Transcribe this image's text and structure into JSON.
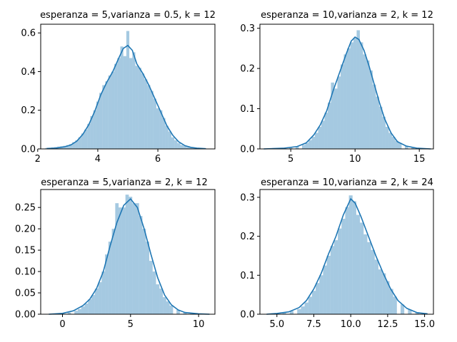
{
  "chart_data": [
    {
      "type": "histogram+kde",
      "title": "esperanza = 5,varianza = 0.5, k = 12",
      "xlim": [
        2.1,
        7.9
      ],
      "ylim": [
        0,
        0.645
      ],
      "xticks": [
        2,
        4,
        6
      ],
      "xtick_labels": [
        "2",
        "4",
        "6"
      ],
      "yticks": [
        0.0,
        0.2,
        0.4,
        0.6
      ],
      "ytick_labels": [
        "0.0",
        "0.2",
        "0.4",
        "0.6"
      ],
      "bin_width": 0.1,
      "bins": [
        [
          2.3,
          0.005
        ],
        [
          2.4,
          0.006
        ],
        [
          2.5,
          0.008
        ],
        [
          2.6,
          0.01
        ],
        [
          2.7,
          0.012
        ],
        [
          2.8,
          0.014
        ],
        [
          2.9,
          0.016
        ],
        [
          3.0,
          0.02
        ],
        [
          3.1,
          0.025
        ],
        [
          3.2,
          0.035
        ],
        [
          3.3,
          0.045
        ],
        [
          3.4,
          0.06
        ],
        [
          3.5,
          0.08
        ],
        [
          3.6,
          0.1
        ],
        [
          3.7,
          0.13
        ],
        [
          3.8,
          0.17
        ],
        [
          3.9,
          0.2
        ],
        [
          4.0,
          0.245
        ],
        [
          4.1,
          0.29
        ],
        [
          4.2,
          0.33
        ],
        [
          4.3,
          0.35
        ],
        [
          4.4,
          0.38
        ],
        [
          4.5,
          0.4
        ],
        [
          4.6,
          0.44
        ],
        [
          4.7,
          0.47
        ],
        [
          4.8,
          0.53
        ],
        [
          4.9,
          0.48
        ],
        [
          5.0,
          0.61
        ],
        [
          5.1,
          0.47
        ],
        [
          5.2,
          0.5
        ],
        [
          5.3,
          0.43
        ],
        [
          5.4,
          0.42
        ],
        [
          5.5,
          0.39
        ],
        [
          5.6,
          0.36
        ],
        [
          5.7,
          0.33
        ],
        [
          5.8,
          0.3
        ],
        [
          5.9,
          0.26
        ],
        [
          6.0,
          0.21
        ],
        [
          6.1,
          0.2
        ],
        [
          6.2,
          0.16
        ],
        [
          6.3,
          0.12
        ],
        [
          6.4,
          0.09
        ],
        [
          6.5,
          0.06
        ],
        [
          6.6,
          0.045
        ],
        [
          6.7,
          0.03
        ],
        [
          6.8,
          0.02
        ],
        [
          6.9,
          0.015
        ],
        [
          7.0,
          0.01
        ],
        [
          7.1,
          0.008
        ],
        [
          7.2,
          0.006
        ],
        [
          7.3,
          0.005
        ],
        [
          7.4,
          0.004
        ],
        [
          7.5,
          0.003
        ]
      ],
      "kde": [
        [
          2.3,
          0.002
        ],
        [
          2.6,
          0.004
        ],
        [
          2.9,
          0.011
        ],
        [
          3.1,
          0.02
        ],
        [
          3.3,
          0.04
        ],
        [
          3.5,
          0.075
        ],
        [
          3.7,
          0.125
        ],
        [
          3.9,
          0.195
        ],
        [
          4.1,
          0.28
        ],
        [
          4.3,
          0.345
        ],
        [
          4.5,
          0.4
        ],
        [
          4.7,
          0.47
        ],
        [
          4.85,
          0.52
        ],
        [
          5.0,
          0.535
        ],
        [
          5.15,
          0.51
        ],
        [
          5.3,
          0.44
        ],
        [
          5.5,
          0.39
        ],
        [
          5.7,
          0.33
        ],
        [
          5.9,
          0.26
        ],
        [
          6.1,
          0.19
        ],
        [
          6.3,
          0.12
        ],
        [
          6.5,
          0.07
        ],
        [
          6.7,
          0.036
        ],
        [
          6.9,
          0.017
        ],
        [
          7.1,
          0.008
        ],
        [
          7.3,
          0.004
        ],
        [
          7.6,
          0.001
        ]
      ]
    },
    {
      "type": "histogram+kde",
      "title": "esperanza = 10,varianza = 2, k = 12",
      "xlim": [
        2.6,
        16.1
      ],
      "ylim": [
        0,
        0.31
      ],
      "xticks": [
        5,
        10,
        15
      ],
      "xtick_labels": [
        "5",
        "10",
        "15"
      ],
      "yticks": [
        0.0,
        0.1,
        0.2,
        0.3
      ],
      "ytick_labels": [
        "0.0",
        "0.1",
        "0.2",
        "0.3"
      ],
      "bin_width": 0.25,
      "bins": [
        [
          3.5,
          0.001
        ],
        [
          4.0,
          0.002
        ],
        [
          4.5,
          0.003
        ],
        [
          5.0,
          0.004
        ],
        [
          5.5,
          0.006
        ],
        [
          6.0,
          0.01
        ],
        [
          6.25,
          0.015
        ],
        [
          6.5,
          0.022
        ],
        [
          6.75,
          0.03
        ],
        [
          7.0,
          0.04
        ],
        [
          7.25,
          0.055
        ],
        [
          7.5,
          0.07
        ],
        [
          7.75,
          0.09
        ],
        [
          8.0,
          0.115
        ],
        [
          8.25,
          0.165
        ],
        [
          8.5,
          0.15
        ],
        [
          8.75,
          0.18
        ],
        [
          9.0,
          0.21
        ],
        [
          9.25,
          0.235
        ],
        [
          9.5,
          0.25
        ],
        [
          9.75,
          0.265
        ],
        [
          10.0,
          0.275
        ],
        [
          10.25,
          0.295
        ],
        [
          10.5,
          0.265
        ],
        [
          10.75,
          0.235
        ],
        [
          11.0,
          0.22
        ],
        [
          11.25,
          0.195
        ],
        [
          11.5,
          0.16
        ],
        [
          11.75,
          0.13
        ],
        [
          12.0,
          0.105
        ],
        [
          12.25,
          0.08
        ],
        [
          12.5,
          0.055
        ],
        [
          12.75,
          0.04
        ],
        [
          13.0,
          0.03
        ],
        [
          13.25,
          0.02
        ],
        [
          13.5,
          0.015
        ],
        [
          14.0,
          0.008
        ],
        [
          14.5,
          0.004
        ],
        [
          15.0,
          0.002
        ],
        [
          15.5,
          0.001
        ]
      ],
      "kde": [
        [
          2.9,
          0.0
        ],
        [
          4.5,
          0.002
        ],
        [
          5.5,
          0.006
        ],
        [
          6.2,
          0.015
        ],
        [
          6.8,
          0.035
        ],
        [
          7.3,
          0.06
        ],
        [
          7.8,
          0.095
        ],
        [
          8.3,
          0.145
        ],
        [
          8.8,
          0.19
        ],
        [
          9.3,
          0.235
        ],
        [
          9.7,
          0.268
        ],
        [
          10.0,
          0.278
        ],
        [
          10.3,
          0.272
        ],
        [
          10.7,
          0.245
        ],
        [
          11.1,
          0.205
        ],
        [
          11.5,
          0.16
        ],
        [
          11.9,
          0.115
        ],
        [
          12.3,
          0.075
        ],
        [
          12.8,
          0.04
        ],
        [
          13.3,
          0.018
        ],
        [
          14.0,
          0.007
        ],
        [
          14.8,
          0.002
        ],
        [
          15.9,
          0.0
        ]
      ]
    },
    {
      "type": "histogram+kde",
      "title": "esperanza = 5,varianza = 2, k = 12",
      "xlim": [
        -1.6,
        11.2
      ],
      "ylim": [
        0,
        0.292
      ],
      "xticks": [
        0,
        5,
        10
      ],
      "xtick_labels": [
        "0",
        "5",
        "10"
      ],
      "yticks": [
        0.0,
        0.05,
        0.1,
        0.15,
        0.2,
        0.25
      ],
      "ytick_labels": [
        "0.00",
        "0.05",
        "0.10",
        "0.15",
        "0.20",
        "0.25"
      ],
      "bin_width": 0.25,
      "bins": [
        [
          -0.5,
          0.001
        ],
        [
          0.0,
          0.002
        ],
        [
          0.5,
          0.004
        ],
        [
          1.0,
          0.008
        ],
        [
          1.25,
          0.012
        ],
        [
          1.5,
          0.018
        ],
        [
          1.75,
          0.025
        ],
        [
          2.0,
          0.035
        ],
        [
          2.25,
          0.045
        ],
        [
          2.5,
          0.06
        ],
        [
          2.75,
          0.075
        ],
        [
          3.0,
          0.1
        ],
        [
          3.25,
          0.14
        ],
        [
          3.5,
          0.17
        ],
        [
          3.75,
          0.2
        ],
        [
          4.0,
          0.26
        ],
        [
          4.25,
          0.25
        ],
        [
          4.5,
          0.25
        ],
        [
          4.75,
          0.28
        ],
        [
          5.0,
          0.275
        ],
        [
          5.25,
          0.26
        ],
        [
          5.5,
          0.26
        ],
        [
          5.75,
          0.23
        ],
        [
          6.0,
          0.2
        ],
        [
          6.25,
          0.17
        ],
        [
          6.5,
          0.125
        ],
        [
          6.75,
          0.1
        ],
        [
          7.0,
          0.07
        ],
        [
          7.25,
          0.06
        ],
        [
          7.5,
          0.04
        ],
        [
          7.75,
          0.03
        ],
        [
          8.0,
          0.02
        ],
        [
          8.5,
          0.01
        ],
        [
          9.0,
          0.005
        ],
        [
          9.5,
          0.003
        ],
        [
          10.0,
          0.001
        ]
      ],
      "kde": [
        [
          -1.0,
          0.0
        ],
        [
          0.0,
          0.002
        ],
        [
          0.8,
          0.008
        ],
        [
          1.5,
          0.02
        ],
        [
          2.0,
          0.035
        ],
        [
          2.5,
          0.06
        ],
        [
          3.0,
          0.1
        ],
        [
          3.5,
          0.16
        ],
        [
          4.0,
          0.215
        ],
        [
          4.5,
          0.255
        ],
        [
          5.0,
          0.27
        ],
        [
          5.5,
          0.25
        ],
        [
          6.0,
          0.2
        ],
        [
          6.5,
          0.14
        ],
        [
          7.0,
          0.085
        ],
        [
          7.5,
          0.045
        ],
        [
          8.0,
          0.022
        ],
        [
          8.5,
          0.01
        ],
        [
          9.0,
          0.004
        ],
        [
          10.0,
          0.001
        ],
        [
          10.8,
          0.0
        ]
      ]
    },
    {
      "type": "histogram+kde",
      "title": "esperanza = 10,varianza = 2, k = 24",
      "xlim": [
        3.85,
        15.6
      ],
      "ylim": [
        0,
        0.32
      ],
      "xticks": [
        5.0,
        7.5,
        10.0,
        12.5,
        15.0
      ],
      "xtick_labels": [
        "5.0",
        "7.5",
        "10.0",
        "12.5",
        "15.0"
      ],
      "yticks": [
        0.0,
        0.1,
        0.2,
        0.3
      ],
      "ytick_labels": [
        "0.0",
        "0.1",
        "0.2",
        "0.3"
      ],
      "bin_width": 0.25,
      "bins": [
        [
          4.5,
          0.001
        ],
        [
          5.0,
          0.002
        ],
        [
          5.5,
          0.004
        ],
        [
          6.0,
          0.008
        ],
        [
          6.5,
          0.013
        ],
        [
          6.75,
          0.02
        ],
        [
          7.0,
          0.03
        ],
        [
          7.25,
          0.045
        ],
        [
          7.5,
          0.06
        ],
        [
          7.75,
          0.08
        ],
        [
          8.0,
          0.1
        ],
        [
          8.25,
          0.125
        ],
        [
          8.5,
          0.15
        ],
        [
          8.75,
          0.175
        ],
        [
          9.0,
          0.19
        ],
        [
          9.25,
          0.22
        ],
        [
          9.5,
          0.245
        ],
        [
          9.75,
          0.275
        ],
        [
          10.0,
          0.305
        ],
        [
          10.25,
          0.29
        ],
        [
          10.5,
          0.255
        ],
        [
          10.75,
          0.235
        ],
        [
          11.0,
          0.205
        ],
        [
          11.25,
          0.185
        ],
        [
          11.5,
          0.165
        ],
        [
          11.75,
          0.14
        ],
        [
          12.0,
          0.115
        ],
        [
          12.25,
          0.105
        ],
        [
          12.5,
          0.085
        ],
        [
          12.75,
          0.065
        ],
        [
          13.0,
          0.045
        ],
        [
          13.5,
          0.025
        ],
        [
          14.0,
          0.012
        ],
        [
          14.5,
          0.005
        ],
        [
          15.0,
          0.002
        ]
      ],
      "kde": [
        [
          4.3,
          0.0
        ],
        [
          5.0,
          0.002
        ],
        [
          5.8,
          0.006
        ],
        [
          6.5,
          0.017
        ],
        [
          7.0,
          0.035
        ],
        [
          7.5,
          0.065
        ],
        [
          8.0,
          0.105
        ],
        [
          8.5,
          0.155
        ],
        [
          9.0,
          0.2
        ],
        [
          9.5,
          0.255
        ],
        [
          10.0,
          0.296
        ],
        [
          10.3,
          0.285
        ],
        [
          10.7,
          0.25
        ],
        [
          11.2,
          0.2
        ],
        [
          11.7,
          0.15
        ],
        [
          12.2,
          0.105
        ],
        [
          12.7,
          0.065
        ],
        [
          13.2,
          0.035
        ],
        [
          13.8,
          0.015
        ],
        [
          14.5,
          0.004
        ],
        [
          15.2,
          0.001
        ]
      ]
    }
  ]
}
